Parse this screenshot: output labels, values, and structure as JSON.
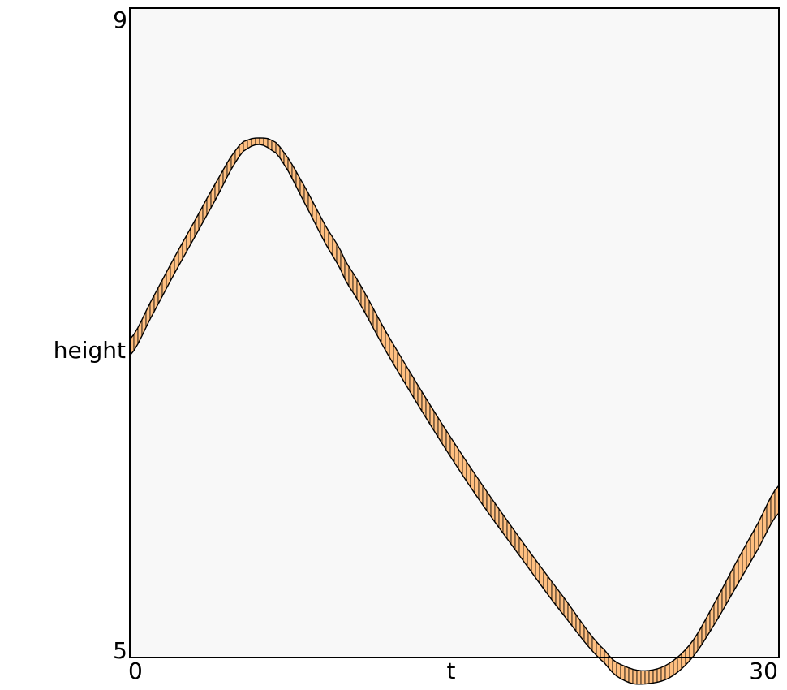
{
  "chart_data": {
    "type": "area",
    "title": "",
    "xlabel": "t",
    "ylabel": "height",
    "xlim": [
      0,
      30
    ],
    "ylim": [
      5,
      9
    ],
    "xticks": [
      "0",
      "30"
    ],
    "yticks": [
      "5",
      "9"
    ],
    "grid": false,
    "legend": "none",
    "colors": {
      "band_fill": "#ffbf80",
      "band_edge": "#000000",
      "plot_background": "#f8f8f8",
      "frame": "#000000"
    },
    "band": {
      "x": [
        0,
        1,
        2,
        3,
        4,
        5,
        5.5,
        6,
        6.5,
        7,
        8,
        9,
        10,
        12,
        14,
        16,
        18,
        20,
        22,
        23,
        24,
        25,
        26,
        27,
        28,
        29,
        30
      ],
      "upper": [
        6.96,
        7.2,
        7.45,
        7.69,
        7.93,
        8.14,
        8.19,
        8.2,
        8.19,
        8.13,
        7.92,
        7.67,
        7.43,
        6.97,
        6.53,
        6.12,
        5.74,
        5.38,
        5.04,
        4.94,
        4.92,
        4.97,
        5.1,
        5.33,
        5.58,
        5.82,
        6.06
      ],
      "lower": [
        6.86,
        7.1,
        7.35,
        7.59,
        7.83,
        8.07,
        8.14,
        8.16,
        8.13,
        8.06,
        7.82,
        7.56,
        7.31,
        6.85,
        6.41,
        6.0,
        5.63,
        5.27,
        4.96,
        4.85,
        4.84,
        4.88,
        5.0,
        5.2,
        5.43,
        5.66,
        5.89
      ]
    }
  }
}
